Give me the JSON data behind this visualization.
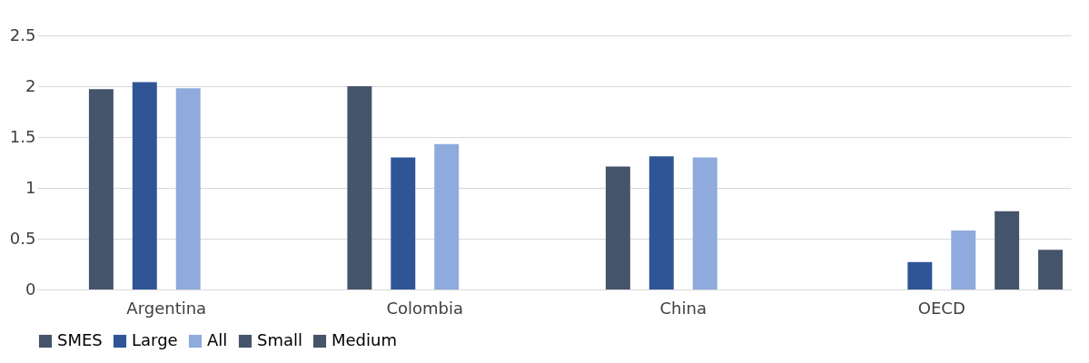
{
  "chart_data": {
    "type": "bar",
    "categories": [
      "Argentina",
      "Colombia",
      "China",
      "OECD"
    ],
    "series": [
      {
        "name": "SMES",
        "color": "#44546a",
        "values": [
          1.97,
          2.0,
          1.21,
          null
        ]
      },
      {
        "name": "Large",
        "color": "#2f5597",
        "values": [
          2.04,
          1.3,
          1.31,
          0.27
        ]
      },
      {
        "name": "All",
        "color": "#8faadc",
        "values": [
          1.98,
          1.43,
          1.3,
          0.58
        ]
      },
      {
        "name": "Small",
        "color": "#44546a",
        "values": [
          null,
          null,
          null,
          0.77
        ]
      },
      {
        "name": "Medium",
        "color": "#44546a",
        "values": [
          null,
          null,
          null,
          0.39
        ]
      }
    ],
    "ylim": [
      0,
      2.5
    ],
    "yticks": [
      0,
      0.5,
      1,
      1.5,
      2,
      2.5
    ],
    "grid": "y",
    "legend": "bottom"
  }
}
